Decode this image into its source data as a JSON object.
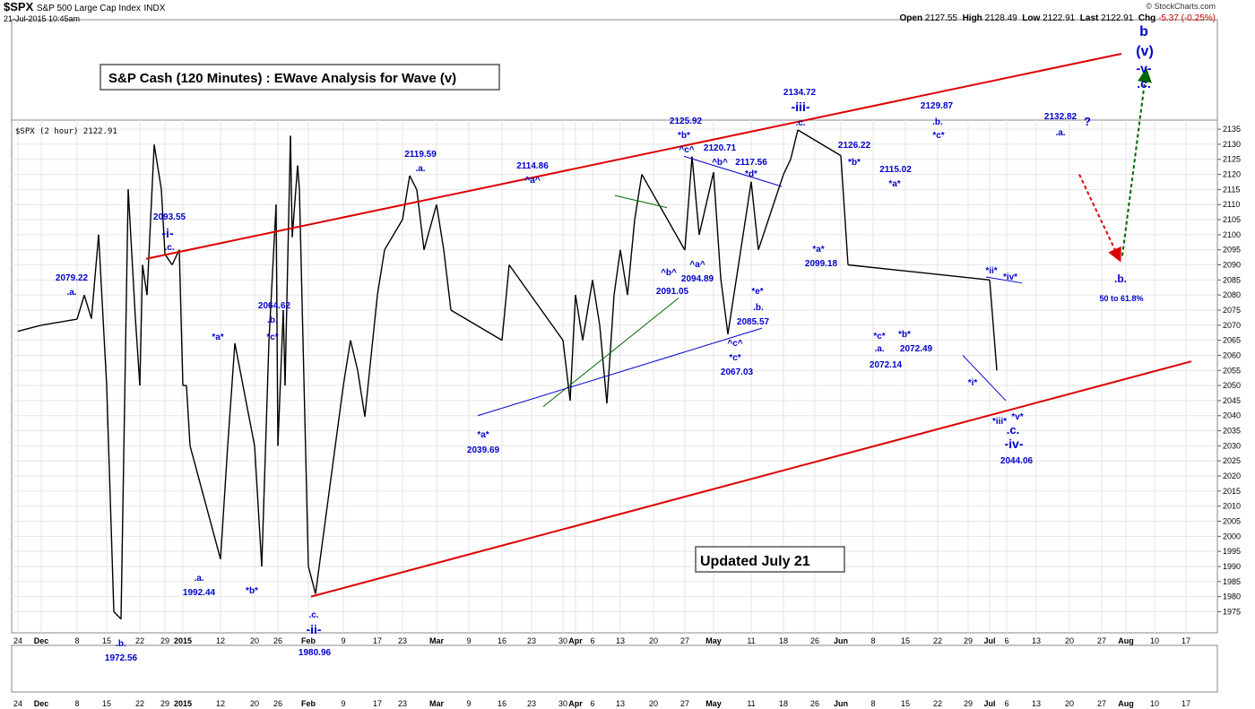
{
  "header": {
    "symbol": "$SPX",
    "name": "S&P 500 Large Cap Index",
    "exchange": "INDX",
    "timestamp": "21-Jul-2015 10:45am",
    "brand": "© StockCharts.com",
    "open_label": "Open",
    "open": "2127.55",
    "high_label": "High",
    "high": "2128.49",
    "low_label": "Low",
    "low": "2122.91",
    "last_label": "Last",
    "last": "2122.91",
    "chg_label": "Chg",
    "chg": "-5.37 (-0.25%)",
    "series_label": "$SPX (2 hour) 2122.91"
  },
  "titles": {
    "main": "S&P Cash (120 Minutes) : EWave Analysis for Wave (v)",
    "updated": "Updated July 21"
  },
  "chart_data": {
    "type": "line",
    "ylim": [
      1968,
      2138
    ],
    "yticks": [
      1975,
      1980,
      1985,
      1990,
      1995,
      2000,
      2005,
      2010,
      2015,
      2020,
      2025,
      2030,
      2035,
      2040,
      2045,
      2050,
      2055,
      2060,
      2065,
      2070,
      2075,
      2080,
      2085,
      2090,
      2095,
      2100,
      2105,
      2110,
      2115,
      2120,
      2125,
      2130,
      2135
    ],
    "xticks": [
      "24",
      "Dec",
      "8",
      "15",
      "22",
      "29",
      "2015",
      "12",
      "20",
      "26",
      "Feb",
      "9",
      "17",
      "23",
      "Mar",
      "9",
      "16",
      "23",
      "30",
      "Apr",
      "6",
      "13",
      "20",
      "27",
      "May",
      "11",
      "18",
      "26",
      "Jun",
      "8",
      "15",
      "22",
      "29",
      "Jul",
      "6",
      "13",
      "20",
      "27",
      "Aug",
      "10",
      "17"
    ],
    "series": [
      {
        "values": [
          [
            "24",
            2068
          ],
          [
            "Dec",
            2070
          ],
          [
            "8",
            2072
          ],
          [
            "8",
            2080
          ],
          [
            "15",
            2050
          ],
          [
            "15",
            1975
          ],
          [
            "15",
            1972.56
          ],
          [
            "22",
            2050
          ],
          [
            "22",
            2080
          ],
          [
            "29",
            2093.55
          ],
          [
            "29",
            2090
          ],
          [
            "2015",
            2050
          ],
          [
            "2015",
            2030
          ],
          [
            "12",
            1992.44
          ],
          [
            "12",
            2030
          ],
          [
            "12",
            2064
          ],
          [
            "20",
            2030
          ],
          [
            "20",
            1990
          ],
          [
            "20",
            2064.62
          ],
          [
            "26",
            2030
          ],
          [
            "26",
            2050
          ],
          [
            "Feb",
            1990
          ],
          [
            "Feb",
            1980.96
          ],
          [
            "9",
            2050
          ],
          [
            "9",
            2065
          ],
          [
            "17",
            2080
          ],
          [
            "17",
            2095
          ],
          [
            "23",
            2105
          ],
          [
            "23",
            2119.59
          ],
          [
            "Mar",
            2110
          ],
          [
            "Mar",
            2095
          ],
          [
            "Mar",
            2075
          ],
          [
            "9",
            2055
          ],
          [
            "9",
            2039.69
          ],
          [
            "16",
            2065
          ],
          [
            "16",
            2090
          ],
          [
            "23",
            2114.86
          ],
          [
            "23",
            2095
          ],
          [
            "30",
            2065
          ],
          [
            "30",
            2045
          ],
          [
            "Apr",
            2080
          ],
          [
            "Apr",
            2065
          ],
          [
            "6",
            2085
          ],
          [
            "6",
            2070
          ],
          [
            "13",
            2095
          ],
          [
            "13",
            2080
          ],
          [
            "20",
            2110
          ],
          [
            "20",
            2075
          ],
          [
            "27",
            2094.89
          ],
          [
            "27",
            2125.92
          ],
          [
            "27",
            2100
          ],
          [
            "May",
            2120.71
          ],
          [
            "May",
            2085.57
          ],
          [
            "May",
            2067.03
          ],
          [
            "11",
            2117.56
          ],
          [
            "11",
            2095
          ],
          [
            "18",
            2120
          ],
          [
            "18",
            2125
          ],
          [
            "18",
            2134.72
          ],
          [
            "26",
            2099.18
          ],
          [
            "26",
            2115
          ],
          [
            "Jun",
            2126.22
          ],
          [
            "Jun",
            2090
          ],
          [
            "8",
            2072.14
          ],
          [
            "8",
            2100
          ],
          [
            "15",
            2115.02
          ],
          [
            "15",
            2072.49
          ],
          [
            "15",
            2090
          ],
          [
            "22",
            2129.87
          ],
          [
            "22",
            2115
          ],
          [
            "29",
            2095
          ],
          [
            "29",
            2050
          ],
          [
            "Jul",
            2085
          ],
          [
            "Jul",
            2055
          ],
          [
            "6",
            2044.06
          ],
          [
            "6",
            2080
          ],
          [
            "13",
            2105
          ],
          [
            "13",
            2120
          ],
          [
            "20",
            2132.82
          ],
          [
            "20",
            2122.91
          ]
        ]
      }
    ],
    "annotations": [
      {
        "text": "2079.22",
        "x": "8",
        "y": 2079.22
      },
      {
        "text": ".a.",
        "x": "8",
        "y": 2079.22
      },
      {
        "text": "2093.55",
        "x": "29",
        "y": 2093.55
      },
      {
        "text": "-i-",
        "x": "29",
        "y": 2093.55
      },
      {
        "text": ".c.",
        "x": "29",
        "y": 2093.55
      },
      {
        "text": ".b.",
        "x": "15",
        "y": 1972.56
      },
      {
        "text": "1972.56",
        "x": "15",
        "y": 1972.56
      },
      {
        "text": ".a.",
        "x": "12",
        "y": 1992.44
      },
      {
        "text": "1992.44",
        "x": "12",
        "y": 1992.44
      },
      {
        "text": "*a*",
        "x": "12",
        "y": 2064
      },
      {
        "text": "2064.62",
        "x": "20",
        "y": 2064.62
      },
      {
        "text": ".b.",
        "x": "20",
        "y": 2064.62
      },
      {
        "text": "*c*",
        "x": "20",
        "y": 2064.62
      },
      {
        "text": "*b*",
        "x": "20",
        "y": 1990
      },
      {
        "text": ".c.",
        "x": "Feb",
        "y": 1980.96
      },
      {
        "text": "-ii-",
        "x": "Feb",
        "y": 1980.96
      },
      {
        "text": "1980.96",
        "x": "Feb",
        "y": 1980.96
      },
      {
        "text": "2119.59",
        "x": "23",
        "y": 2119.59
      },
      {
        "text": ".a.",
        "x": "23",
        "y": 2119.59
      },
      {
        "text": "*a*",
        "x": "9",
        "y": 2039.69
      },
      {
        "text": "2039.69",
        "x": "9",
        "y": 2039.69
      },
      {
        "text": "2114.86",
        "x": "23",
        "y": 2114.86
      },
      {
        "text": "^a^",
        "x": "23",
        "y": 2114.86
      },
      {
        "text": "^b^",
        "x": "20",
        "y": 2091.05
      },
      {
        "text": "2091.05",
        "x": "20",
        "y": 2091.05
      },
      {
        "text": "^a^",
        "x": "27",
        "y": 2094.89
      },
      {
        "text": "2094.89",
        "x": "27",
        "y": 2094.89
      },
      {
        "text": "2125.92",
        "x": "27",
        "y": 2125.92
      },
      {
        "text": "*b*",
        "x": "27",
        "y": 2125.92
      },
      {
        "text": "^c^",
        "x": "27",
        "y": 2125.92
      },
      {
        "text": "2120.71",
        "x": "May",
        "y": 2120.71
      },
      {
        "text": "^b^",
        "x": "May",
        "y": 2120.71
      },
      {
        "text": "2117.56",
        "x": "11",
        "y": 2117.56
      },
      {
        "text": "*d*",
        "x": "11",
        "y": 2117.56
      },
      {
        "text": "*e*",
        "x": "11",
        "y": 2085.57
      },
      {
        "text": ".b.",
        "x": "11",
        "y": 2085.57
      },
      {
        "text": "2085.57",
        "x": "11",
        "y": 2085.57
      },
      {
        "text": "^c^",
        "x": "May",
        "y": 2067.03
      },
      {
        "text": "*c*",
        "x": "May",
        "y": 2067.03
      },
      {
        "text": "2067.03",
        "x": "May",
        "y": 2067.03
      },
      {
        "text": "2134.72",
        "x": "18",
        "y": 2134.72
      },
      {
        "text": "-iii-",
        "x": "18",
        "y": 2134.72
      },
      {
        "text": ".c.",
        "x": "18",
        "y": 2134.72
      },
      {
        "text": "*a*",
        "x": "26",
        "y": 2099.18
      },
      {
        "text": "2099.18",
        "x": "26",
        "y": 2099.18
      },
      {
        "text": "2126.22",
        "x": "Jun",
        "y": 2126.22
      },
      {
        "text": "*b*",
        "x": "Jun",
        "y": 2126.22
      },
      {
        "text": "2115.02",
        "x": "15",
        "y": 2115.02
      },
      {
        "text": "*a*",
        "x": "15",
        "y": 2115.02
      },
      {
        "text": "*c*",
        "x": "8",
        "y": 2072.14
      },
      {
        "text": ".a.",
        "x": "8",
        "y": 2072.14
      },
      {
        "text": "2072.14",
        "x": "8",
        "y": 2072.14
      },
      {
        "text": "*b*",
        "x": "15",
        "y": 2072.49
      },
      {
        "text": "2072.49",
        "x": "15",
        "y": 2072.49
      },
      {
        "text": "2129.87",
        "x": "22",
        "y": 2129.87
      },
      {
        "text": ".b.",
        "x": "22",
        "y": 2129.87
      },
      {
        "text": "*c*",
        "x": "22",
        "y": 2129.87
      },
      {
        "text": "*ii*",
        "x": "Jul",
        "y": 2085
      },
      {
        "text": "*iv*",
        "x": "Jul",
        "y": 2085
      },
      {
        "text": "*i*",
        "x": "29",
        "y": 2050
      },
      {
        "text": "*iii*",
        "x": "6",
        "y": 2044.06
      },
      {
        "text": "*v*",
        "x": "6",
        "y": 2044.06
      },
      {
        "text": ".c.",
        "x": "6",
        "y": 2044.06
      },
      {
        "text": "-iv-",
        "x": "6",
        "y": 2044.06
      },
      {
        "text": "2044.06",
        "x": "6",
        "y": 2044.06
      },
      {
        "text": "2132.82",
        "x": "20",
        "y": 2132.82
      },
      {
        "text": ".a.",
        "x": "20",
        "y": 2132.82
      },
      {
        "text": "?",
        "x": "20",
        "y": 2132.82
      },
      {
        "text": "b",
        "x": "Aug",
        "y": 2138
      },
      {
        "text": "(v)",
        "x": "Aug",
        "y": 2138
      },
      {
        "text": "-v-",
        "x": "Aug",
        "y": 2138
      },
      {
        "text": ".c.",
        "x": "Aug",
        "y": 2138
      },
      {
        "text": ".b.",
        "x": "Aug",
        "y": 2090
      },
      {
        "text": "50 to 61.8%",
        "x": "Aug",
        "y": 2090
      }
    ]
  },
  "colors": {
    "price": "#000000",
    "label": "#0000cc",
    "channel": "#dd0000",
    "blue_line": "#0000cc",
    "green_line": "#006600",
    "arrow_down": "#dd0000",
    "arrow_up": "#006600",
    "grid": "#e6e6e6"
  }
}
